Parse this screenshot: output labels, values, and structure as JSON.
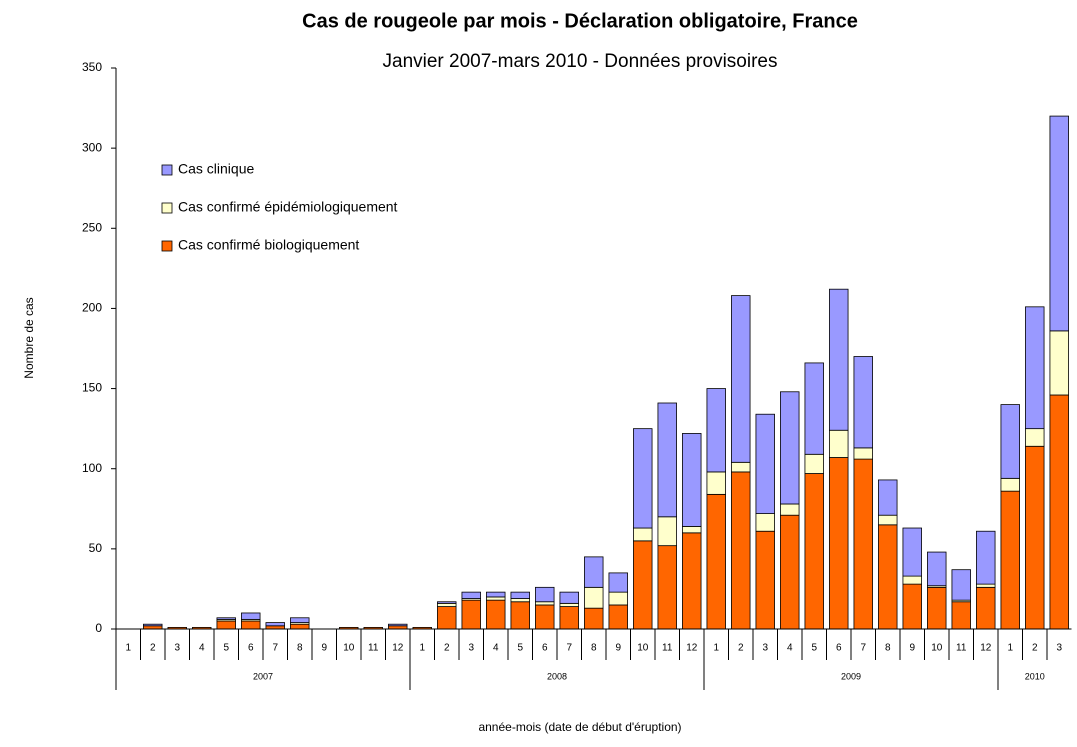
{
  "chart_data": {
    "type": "bar",
    "stacked": true,
    "title": "Cas de rougeole par mois - Déclaration obligatoire, France",
    "subtitle": "Janvier 2007-mars 2010 - Données provisoires",
    "y_label": "Nombre de cas",
    "x_label": "année-mois (date de début d'éruption)",
    "categories": [
      "1",
      "2",
      "3",
      "4",
      "5",
      "6",
      "7",
      "8",
      "9",
      "10",
      "11",
      "12",
      "1",
      "2",
      "3",
      "4",
      "5",
      "6",
      "7",
      "8",
      "9",
      "10",
      "11",
      "12",
      "1",
      "2",
      "3",
      "4",
      "5",
      "6",
      "7",
      "8",
      "9",
      "10",
      "11",
      "12",
      "1",
      "2",
      "3"
    ],
    "years": [
      "2007",
      "2008",
      "2009",
      "2010"
    ],
    "series": [
      {
        "name": "Cas confirmé biologiquement",
        "color": "#ff6600",
        "values": [
          0,
          2,
          1,
          1,
          5,
          5,
          2,
          3,
          0,
          1,
          1,
          2,
          1,
          14,
          18,
          18,
          17,
          15,
          14,
          13,
          15,
          55,
          52,
          60,
          84,
          98,
          61,
          71,
          97,
          107,
          106,
          65,
          28,
          26,
          17,
          26,
          86,
          114,
          146
        ]
      },
      {
        "name": "Cas confirmé épidémiologiquement",
        "color": "#ffffcc",
        "values": [
          0,
          0,
          0,
          0,
          1,
          1,
          0,
          1,
          0,
          0,
          0,
          0,
          0,
          2,
          1,
          2,
          2,
          2,
          2,
          13,
          8,
          8,
          18,
          4,
          14,
          6,
          11,
          7,
          12,
          17,
          7,
          6,
          5,
          1,
          1,
          2,
          8,
          11,
          40
        ]
      },
      {
        "name": "Cas clinique",
        "color": "#9999ff",
        "values": [
          0,
          1,
          0,
          0,
          1,
          4,
          2,
          3,
          0,
          0,
          0,
          1,
          0,
          1,
          4,
          3,
          4,
          9,
          7,
          19,
          12,
          62,
          71,
          58,
          52,
          104,
          62,
          70,
          57,
          88,
          57,
          22,
          30,
          21,
          19,
          33,
          46,
          76,
          134
        ]
      }
    ],
    "ylim": [
      0,
      350
    ],
    "yticks": [
      0,
      50,
      100,
      150,
      200,
      250,
      300,
      350
    ],
    "legend": "top-left"
  }
}
